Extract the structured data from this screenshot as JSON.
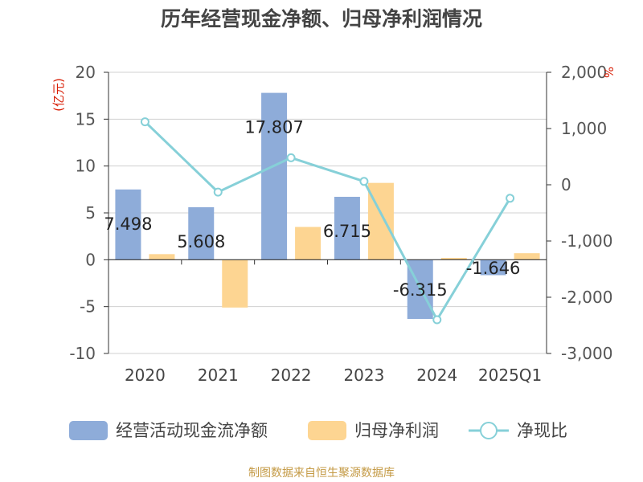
{
  "title": "历年经营现金净额、归母净利润情况",
  "footer": "制图数据来自恒生聚源数据库",
  "chart_data": {
    "type": "bar+line",
    "categories": [
      "2020",
      "2021",
      "2022",
      "2023",
      "2024",
      "2025Q1"
    ],
    "series": [
      {
        "name": "经营活动现金流净额",
        "type": "bar",
        "axis": "left",
        "color": "#8eacd9",
        "values": [
          7.498,
          5.608,
          17.807,
          6.715,
          -6.315,
          -1.646
        ],
        "labels": [
          "7.498",
          "5.608",
          "17.807",
          "6.715",
          "-6.315",
          "-1.646"
        ]
      },
      {
        "name": "归母净利润",
        "type": "bar",
        "axis": "left",
        "color": "#fdd592",
        "values": [
          0.6,
          -5.1,
          3.5,
          8.2,
          0.2,
          0.7
        ]
      },
      {
        "name": "净现比",
        "type": "line",
        "axis": "right",
        "color": "#86d0d8",
        "values": [
          1120,
          -130,
          480,
          60,
          -2400,
          -240
        ]
      }
    ],
    "left_axis": {
      "unit": "(亿元)",
      "min": -10,
      "max": 20,
      "step": 5,
      "ticks": [
        "20",
        "15",
        "10",
        "5",
        "0",
        "-5",
        "-10"
      ]
    },
    "right_axis": {
      "unit": "%",
      "min": -3000,
      "max": 2000,
      "step": 1000,
      "ticks": [
        "2,000",
        "1,000",
        "0",
        "-1,000",
        "-2,000",
        "-3,000"
      ]
    },
    "legend": [
      "经营活动现金流净额",
      "归母净利润",
      "净现比"
    ]
  }
}
